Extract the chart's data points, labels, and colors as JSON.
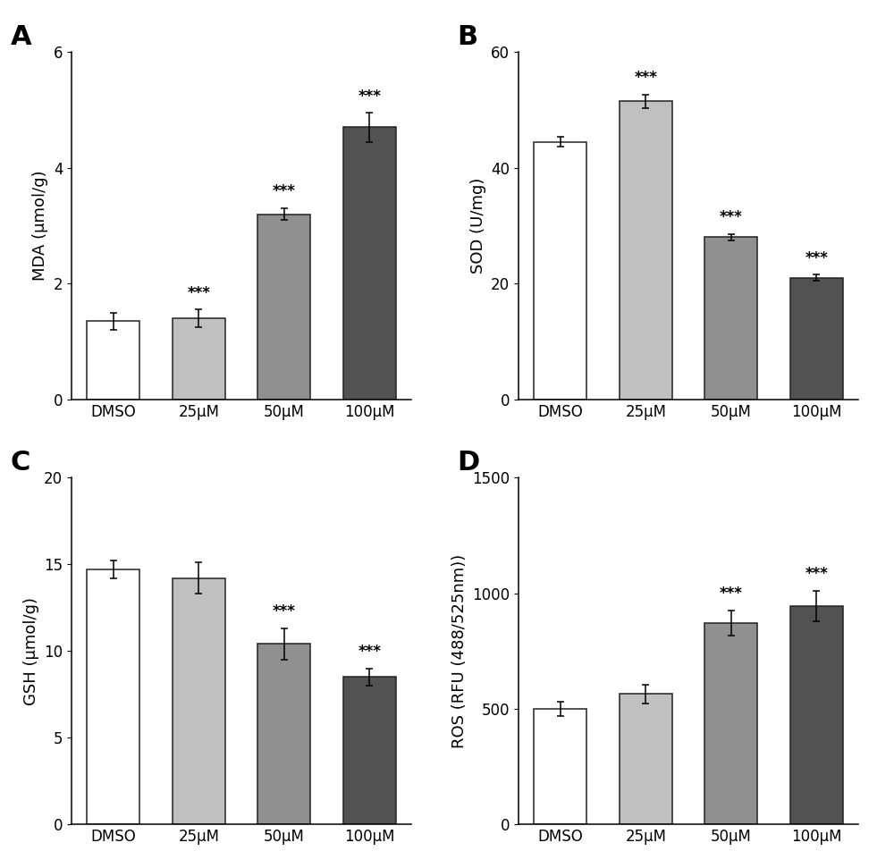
{
  "categories": [
    "DMSO",
    "25μM",
    "50μM",
    "100μM"
  ],
  "panels": {
    "A": {
      "label": "A",
      "ylabel": "MDA (μmol/g)",
      "ylim": [
        0,
        6
      ],
      "yticks": [
        0,
        2,
        4,
        6
      ],
      "values": [
        1.35,
        1.4,
        3.2,
        4.7
      ],
      "errors": [
        0.15,
        0.15,
        0.1,
        0.25
      ],
      "sig": [
        false,
        true,
        true,
        true
      ],
      "bar_colors": [
        "#ffffff",
        "#c0c0c0",
        "#909090",
        "#525252"
      ],
      "bar_edgecolors": [
        "#222222",
        "#222222",
        "#222222",
        "#222222"
      ]
    },
    "B": {
      "label": "B",
      "ylabel": "SOD (U/mg)",
      "ylim": [
        0,
        60
      ],
      "yticks": [
        0,
        20,
        40,
        60
      ],
      "values": [
        44.5,
        51.5,
        28.0,
        21.0
      ],
      "errors": [
        0.8,
        1.2,
        0.6,
        0.5
      ],
      "sig": [
        false,
        true,
        true,
        true
      ],
      "bar_colors": [
        "#ffffff",
        "#c0c0c0",
        "#909090",
        "#525252"
      ],
      "bar_edgecolors": [
        "#222222",
        "#222222",
        "#222222",
        "#222222"
      ]
    },
    "C": {
      "label": "C",
      "ylabel": "GSH (μmol/g)",
      "ylim": [
        0,
        20
      ],
      "yticks": [
        0,
        5,
        10,
        15,
        20
      ],
      "values": [
        14.7,
        14.2,
        10.4,
        8.5
      ],
      "errors": [
        0.5,
        0.9,
        0.9,
        0.5
      ],
      "sig": [
        false,
        false,
        true,
        true
      ],
      "bar_colors": [
        "#ffffff",
        "#c0c0c0",
        "#909090",
        "#525252"
      ],
      "bar_edgecolors": [
        "#222222",
        "#222222",
        "#222222",
        "#222222"
      ]
    },
    "D": {
      "label": "D",
      "ylabel": "ROS (RFU (488/525nm))",
      "ylim": [
        0,
        1500
      ],
      "yticks": [
        0,
        500,
        1000,
        1500
      ],
      "values": [
        500,
        565,
        870,
        945
      ],
      "errors": [
        30,
        40,
        55,
        65
      ],
      "sig": [
        false,
        false,
        true,
        true
      ],
      "bar_colors": [
        "#ffffff",
        "#c0c0c0",
        "#909090",
        "#525252"
      ],
      "bar_edgecolors": [
        "#222222",
        "#222222",
        "#222222",
        "#222222"
      ]
    }
  },
  "panel_order": [
    "A",
    "B",
    "C",
    "D"
  ],
  "categories_xlabel": [
    "DMSO",
    "25μM",
    "50μM",
    "100μM"
  ],
  "sig_text": "***",
  "background_color": "#ffffff",
  "tick_fontsize": 12,
  "ylabel_fontsize": 13,
  "sig_fontsize": 12,
  "bar_width": 0.62,
  "panel_label_fontsize": 22,
  "figure_width": 10.0,
  "figure_height": 9.71,
  "dpi": 100
}
